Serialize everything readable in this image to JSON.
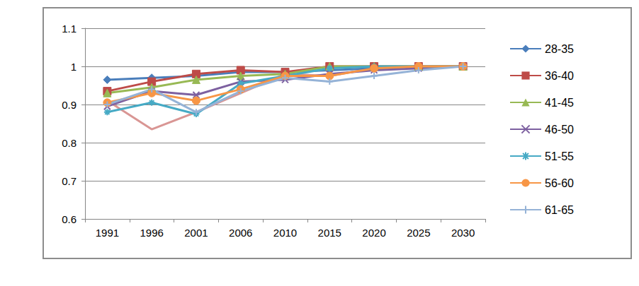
{
  "chart_data": {
    "type": "line",
    "categories": [
      "1991",
      "1996",
      "2001",
      "2006",
      "2010",
      "2015",
      "2020",
      "2025",
      "2030"
    ],
    "ylim": [
      0.6,
      1.1
    ],
    "yticks": [
      0.6,
      0.7,
      0.8,
      0.9,
      1,
      1.1
    ],
    "grid": true,
    "legend": "right",
    "series": [
      {
        "name": "28-35",
        "color": "#4a7ebb",
        "marker": "diamond",
        "values": [
          0.965,
          0.97,
          0.975,
          0.985,
          0.985,
          0.99,
          0.995,
          1.0,
          1.0
        ]
      },
      {
        "name": "36-40",
        "color": "#be4b48",
        "marker": "square",
        "values": [
          0.935,
          0.96,
          0.98,
          0.99,
          0.985,
          1.0,
          1.0,
          1.0,
          1.0
        ]
      },
      {
        "name": "41-45",
        "color": "#98b954",
        "marker": "triangle",
        "values": [
          0.93,
          0.945,
          0.965,
          0.975,
          0.98,
          1.0,
          1.0,
          1.0,
          1.0
        ]
      },
      {
        "name": "46-50",
        "color": "#7d60a0",
        "marker": "x",
        "values": [
          0.895,
          0.935,
          0.925,
          0.96,
          0.965,
          0.98,
          0.99,
          0.995,
          1.0
        ]
      },
      {
        "name": "51-55",
        "color": "#46aac5",
        "marker": "star",
        "values": [
          0.88,
          0.905,
          0.875,
          0.955,
          0.975,
          0.995,
          1.0,
          1.0,
          1.0
        ]
      },
      {
        "name": "56-60",
        "color": "#f79646",
        "marker": "circle",
        "values": [
          0.905,
          0.93,
          0.91,
          0.94,
          0.975,
          0.975,
          0.995,
          1.0,
          1.0
        ]
      },
      {
        "name": "61-65",
        "color": "#95b3d7",
        "marker": "plus",
        "values": [
          0.9,
          0.94,
          0.88,
          0.935,
          0.97,
          0.96,
          0.975,
          0.99,
          1.0
        ]
      },
      {
        "color": "#d99694",
        "marker": "none",
        "values": [
          0.91,
          0.835,
          0.88,
          0.93,
          0.98,
          0.975,
          0.995,
          1.0,
          1.0
        ]
      }
    ]
  }
}
